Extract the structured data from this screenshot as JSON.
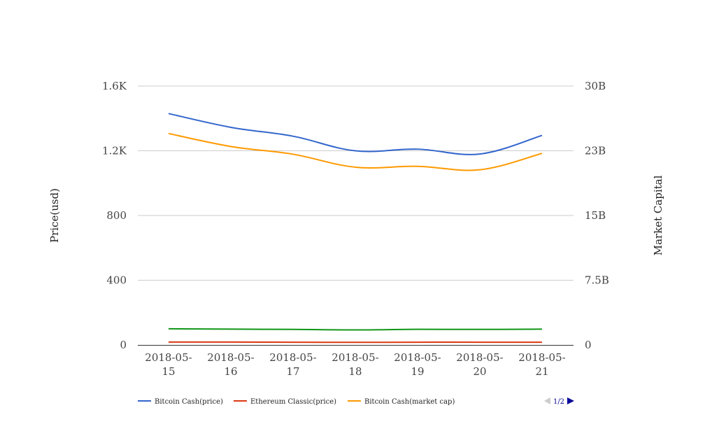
{
  "chart_data": {
    "type": "line",
    "x": [
      "2018-05-15",
      "2018-05-16",
      "2018-05-17",
      "2018-05-18",
      "2018-05-19",
      "2018-05-20",
      "2018-05-21"
    ],
    "x_tick_labels": [
      [
        "2018-05-",
        "15"
      ],
      [
        "2018-05-",
        "16"
      ],
      [
        "2018-05-",
        "17"
      ],
      [
        "2018-05-",
        "18"
      ],
      [
        "2018-05-",
        "19"
      ],
      [
        "2018-05-",
        "20"
      ],
      [
        "2018-05-",
        "21"
      ]
    ],
    "left_axis": {
      "label": "Price(usd)",
      "ylim": [
        0,
        1600
      ],
      "ticks": [
        0,
        400,
        800,
        1200,
        1600
      ],
      "tick_labels": [
        "0",
        "400",
        "800",
        "1.2K",
        "1.6K"
      ]
    },
    "right_axis": {
      "label": "Market Capital",
      "ylim": [
        0,
        30000000000
      ],
      "ticks": [
        0,
        7500000000,
        15000000000,
        22500000000,
        30000000000
      ],
      "tick_labels": [
        "0",
        "7.5B",
        "15B",
        "23B",
        "30B"
      ]
    },
    "series": [
      {
        "name": "Bitcoin Cash(price)",
        "axis": "left",
        "color": "#3366cc",
        "values": [
          1430,
          1345,
          1290,
          1200,
          1210,
          1180,
          1295
        ]
      },
      {
        "name": "Ethereum Classic(price)",
        "axis": "left",
        "color": "#dc3912",
        "values": [
          18,
          18,
          17,
          16,
          17,
          17,
          17
        ]
      },
      {
        "name": "Bitcoin Cash(market cap)",
        "axis": "right",
        "color": "#ff9900",
        "values": [
          24500000000,
          23000000000,
          22100000000,
          20600000000,
          20700000000,
          20300000000,
          22200000000
        ]
      },
      {
        "axis": "right",
        "color": "#109618",
        "values": [
          1870000000,
          1830000000,
          1800000000,
          1740000000,
          1810000000,
          1800000000,
          1830000000
        ]
      }
    ],
    "legend_position": "bottom",
    "grid": true
  },
  "legend": {
    "items": [
      {
        "label": "Bitcoin Cash(price)",
        "color": "#3366cc"
      },
      {
        "label": "Ethereum Classic(price)",
        "color": "#dc3912"
      },
      {
        "label": "Bitcoin Cash(market cap)",
        "color": "#ff9900"
      }
    ],
    "pager": {
      "text": "1/2",
      "prev_color": "#cccccc",
      "next_color": "#0a0a99"
    }
  }
}
